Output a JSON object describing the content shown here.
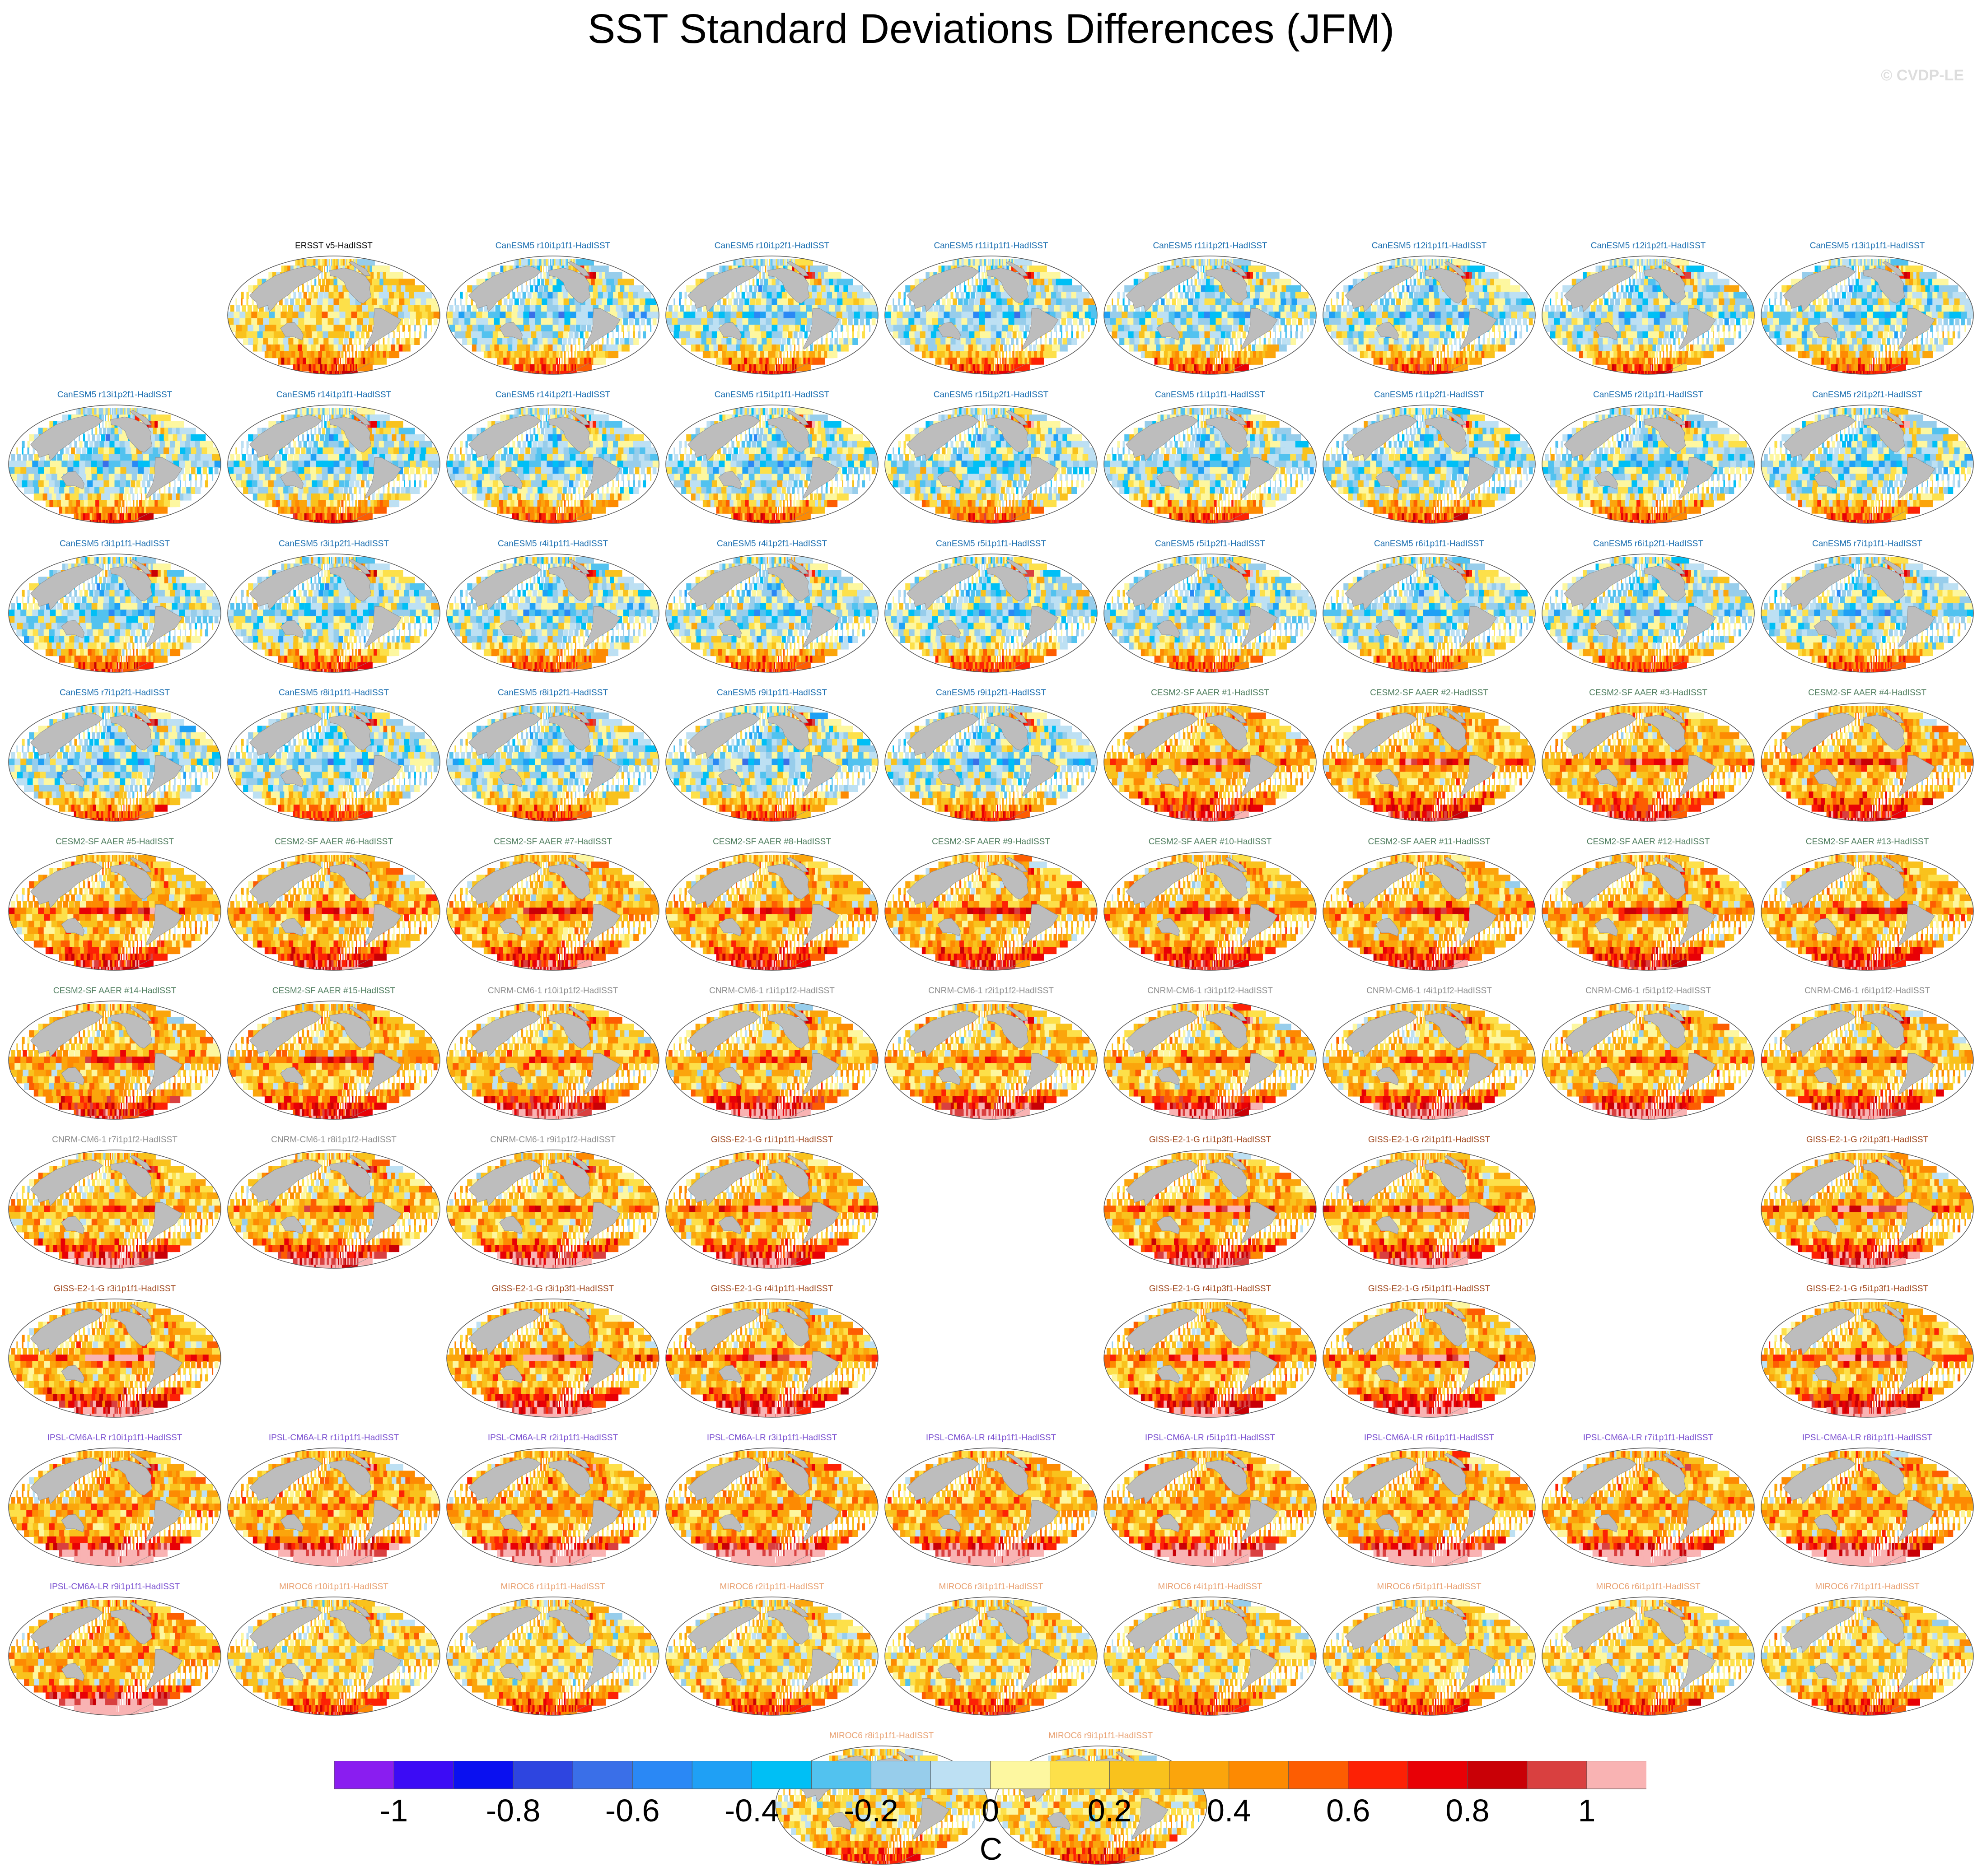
{
  "title": "SST Standard Deviations Differences (JFM)",
  "credit": "© CVDP-LE",
  "colorbar": {
    "units": "C",
    "tick_labels": [
      "-1",
      "-0.8",
      "-0.6",
      "-0.4",
      "-0.2",
      "0",
      "0.2",
      "0.4",
      "0.6",
      "0.8",
      "1"
    ],
    "colors": [
      "#8a1df0",
      "#3c0bf5",
      "#0a10f0",
      "#2e45e0",
      "#3a6fe8",
      "#2a88f5",
      "#1fa0f5",
      "#00bff5",
      "#52c2ef",
      "#97cdeb",
      "#bde0f3",
      "#fdf7a0",
      "#fde04a",
      "#f9c21d",
      "#fba50c",
      "#fd8a02",
      "#fd5d02",
      "#fd2105",
      "#e80006",
      "#c90006",
      "#d94040",
      "#f9b3b3"
    ]
  },
  "chart_data": {
    "type": "heatmap",
    "title": "SST Standard Deviations Differences (JFM)",
    "season": "JFM",
    "value_range": [
      -1.1,
      1.1
    ],
    "panels": [
      {
        "label": "ERSST v5-HadISST",
        "group": "obs",
        "grid": [
          1,
          1
        ]
      },
      {
        "label": "CanESM5 r10i1p1f1-HadISST",
        "group": "CanESM5",
        "grid": [
          1,
          2
        ]
      },
      {
        "label": "CanESM5 r10i1p2f1-HadISST",
        "group": "CanESM5",
        "grid": [
          1,
          3
        ]
      },
      {
        "label": "CanESM5 r11i1p1f1-HadISST",
        "group": "CanESM5",
        "grid": [
          1,
          4
        ]
      },
      {
        "label": "CanESM5 r11i1p2f1-HadISST",
        "group": "CanESM5",
        "grid": [
          1,
          5
        ]
      },
      {
        "label": "CanESM5 r12i1p1f1-HadISST",
        "group": "CanESM5",
        "grid": [
          1,
          6
        ]
      },
      {
        "label": "CanESM5 r12i1p2f1-HadISST",
        "group": "CanESM5",
        "grid": [
          1,
          7
        ]
      },
      {
        "label": "CanESM5 r13i1p1f1-HadISST",
        "group": "CanESM5",
        "grid": [
          1,
          8
        ]
      },
      {
        "label": "CanESM5 r13i1p2f1-HadISST",
        "group": "CanESM5",
        "grid": [
          2,
          0
        ]
      },
      {
        "label": "CanESM5 r14i1p1f1-HadISST",
        "group": "CanESM5",
        "grid": [
          2,
          1
        ]
      },
      {
        "label": "CanESM5 r14i1p2f1-HadISST",
        "group": "CanESM5",
        "grid": [
          2,
          2
        ]
      },
      {
        "label": "CanESM5 r15i1p1f1-HadISST",
        "group": "CanESM5",
        "grid": [
          2,
          3
        ]
      },
      {
        "label": "CanESM5 r15i1p2f1-HadISST",
        "group": "CanESM5",
        "grid": [
          2,
          4
        ]
      },
      {
        "label": "CanESM5 r1i1p1f1-HadISST",
        "group": "CanESM5",
        "grid": [
          2,
          5
        ]
      },
      {
        "label": "CanESM5 r1i1p2f1-HadISST",
        "group": "CanESM5",
        "grid": [
          2,
          6
        ]
      },
      {
        "label": "CanESM5 r2i1p1f1-HadISST",
        "group": "CanESM5",
        "grid": [
          2,
          7
        ]
      },
      {
        "label": "CanESM5 r2i1p2f1-HadISST",
        "group": "CanESM5",
        "grid": [
          2,
          8
        ]
      },
      {
        "label": "CanESM5 r3i1p1f1-HadISST",
        "group": "CanESM5",
        "grid": [
          3,
          0
        ]
      },
      {
        "label": "CanESM5 r3i1p2f1-HadISST",
        "group": "CanESM5",
        "grid": [
          3,
          1
        ]
      },
      {
        "label": "CanESM5 r4i1p1f1-HadISST",
        "group": "CanESM5",
        "grid": [
          3,
          2
        ]
      },
      {
        "label": "CanESM5 r4i1p2f1-HadISST",
        "group": "CanESM5",
        "grid": [
          3,
          3
        ]
      },
      {
        "label": "CanESM5 r5i1p1f1-HadISST",
        "group": "CanESM5",
        "grid": [
          3,
          4
        ]
      },
      {
        "label": "CanESM5 r5i1p2f1-HadISST",
        "group": "CanESM5",
        "grid": [
          3,
          5
        ]
      },
      {
        "label": "CanESM5 r6i1p1f1-HadISST",
        "group": "CanESM5",
        "grid": [
          3,
          6
        ]
      },
      {
        "label": "CanESM5 r6i1p2f1-HadISST",
        "group": "CanESM5",
        "grid": [
          3,
          7
        ]
      },
      {
        "label": "CanESM5 r7i1p1f1-HadISST",
        "group": "CanESM5",
        "grid": [
          3,
          8
        ]
      },
      {
        "label": "CanESM5 r7i1p2f1-HadISST",
        "group": "CanESM5",
        "grid": [
          4,
          0
        ]
      },
      {
        "label": "CanESM5 r8i1p1f1-HadISST",
        "group": "CanESM5",
        "grid": [
          4,
          1
        ]
      },
      {
        "label": "CanESM5 r8i1p2f1-HadISST",
        "group": "CanESM5",
        "grid": [
          4,
          2
        ]
      },
      {
        "label": "CanESM5 r9i1p1f1-HadISST",
        "group": "CanESM5",
        "grid": [
          4,
          3
        ]
      },
      {
        "label": "CanESM5 r9i1p2f1-HadISST",
        "group": "CanESM5",
        "grid": [
          4,
          4
        ]
      },
      {
        "label": "CESM2-SF AAER #1-HadISST",
        "group": "CESM2-SF AAER",
        "grid": [
          4,
          5
        ]
      },
      {
        "label": "CESM2-SF AAER #2-HadISST",
        "group": "CESM2-SF AAER",
        "grid": [
          4,
          6
        ]
      },
      {
        "label": "CESM2-SF AAER #3-HadISST",
        "group": "CESM2-SF AAER",
        "grid": [
          4,
          7
        ]
      },
      {
        "label": "CESM2-SF AAER #4-HadISST",
        "group": "CESM2-SF AAER",
        "grid": [
          4,
          8
        ]
      },
      {
        "label": "CESM2-SF AAER #5-HadISST",
        "group": "CESM2-SF AAER",
        "grid": [
          5,
          0
        ]
      },
      {
        "label": "CESM2-SF AAER #6-HadISST",
        "group": "CESM2-SF AAER",
        "grid": [
          5,
          1
        ]
      },
      {
        "label": "CESM2-SF AAER #7-HadISST",
        "group": "CESM2-SF AAER",
        "grid": [
          5,
          2
        ]
      },
      {
        "label": "CESM2-SF AAER #8-HadISST",
        "group": "CESM2-SF AAER",
        "grid": [
          5,
          3
        ]
      },
      {
        "label": "CESM2-SF AAER #9-HadISST",
        "group": "CESM2-SF AAER",
        "grid": [
          5,
          4
        ]
      },
      {
        "label": "CESM2-SF AAER #10-HadISST",
        "group": "CESM2-SF AAER",
        "grid": [
          5,
          5
        ]
      },
      {
        "label": "CESM2-SF AAER #11-HadISST",
        "group": "CESM2-SF AAER",
        "grid": [
          5,
          6
        ]
      },
      {
        "label": "CESM2-SF AAER #12-HadISST",
        "group": "CESM2-SF AAER",
        "grid": [
          5,
          7
        ]
      },
      {
        "label": "CESM2-SF AAER #13-HadISST",
        "group": "CESM2-SF AAER",
        "grid": [
          5,
          8
        ]
      },
      {
        "label": "CESM2-SF AAER #14-HadISST",
        "group": "CESM2-SF AAER",
        "grid": [
          6,
          0
        ]
      },
      {
        "label": "CESM2-SF AAER #15-HadISST",
        "group": "CESM2-SF AAER",
        "grid": [
          6,
          1
        ]
      },
      {
        "label": "CNRM-CM6-1 r10i1p1f2-HadISST",
        "group": "CNRM-CM6-1",
        "grid": [
          6,
          2
        ]
      },
      {
        "label": "CNRM-CM6-1 r1i1p1f2-HadISST",
        "group": "CNRM-CM6-1",
        "grid": [
          6,
          3
        ]
      },
      {
        "label": "CNRM-CM6-1 r2i1p1f2-HadISST",
        "group": "CNRM-CM6-1",
        "grid": [
          6,
          4
        ]
      },
      {
        "label": "CNRM-CM6-1 r3i1p1f2-HadISST",
        "group": "CNRM-CM6-1",
        "grid": [
          6,
          5
        ]
      },
      {
        "label": "CNRM-CM6-1 r4i1p1f2-HadISST",
        "group": "CNRM-CM6-1",
        "grid": [
          6,
          6
        ]
      },
      {
        "label": "CNRM-CM6-1 r5i1p1f2-HadISST",
        "group": "CNRM-CM6-1",
        "grid": [
          6,
          7
        ]
      },
      {
        "label": "CNRM-CM6-1 r6i1p1f2-HadISST",
        "group": "CNRM-CM6-1",
        "grid": [
          6,
          8
        ]
      },
      {
        "label": "CNRM-CM6-1 r7i1p1f2-HadISST",
        "group": "CNRM-CM6-1",
        "grid": [
          7,
          0
        ]
      },
      {
        "label": "CNRM-CM6-1 r8i1p1f2-HadISST",
        "group": "CNRM-CM6-1",
        "grid": [
          7,
          1
        ]
      },
      {
        "label": "CNRM-CM6-1 r9i1p1f2-HadISST",
        "group": "CNRM-CM6-1",
        "grid": [
          7,
          2
        ]
      },
      {
        "label": "GISS-E2-1-G r1i1p1f1-HadISST",
        "group": "GISS-E2-1-G",
        "grid": [
          7,
          3
        ]
      },
      {
        "label": "GISS-E2-1-G r1i1p3f1-HadISST",
        "group": "GISS-E2-1-G",
        "grid": [
          7,
          5
        ]
      },
      {
        "label": "GISS-E2-1-G r2i1p1f1-HadISST",
        "group": "GISS-E2-1-G",
        "grid": [
          7,
          6
        ]
      },
      {
        "label": "GISS-E2-1-G r2i1p3f1-HadISST",
        "group": "GISS-E2-1-G",
        "grid": [
          7,
          8
        ]
      },
      {
        "label": "GISS-E2-1-G r3i1p1f1-HadISST",
        "group": "GISS-E2-1-G",
        "grid": [
          8,
          0
        ]
      },
      {
        "label": "GISS-E2-1-G r3i1p3f1-HadISST",
        "group": "GISS-E2-1-G",
        "grid": [
          8,
          2
        ]
      },
      {
        "label": "GISS-E2-1-G r4i1p1f1-HadISST",
        "group": "GISS-E2-1-G",
        "grid": [
          8,
          3
        ]
      },
      {
        "label": "GISS-E2-1-G r4i1p3f1-HadISST",
        "group": "GISS-E2-1-G",
        "grid": [
          8,
          5
        ]
      },
      {
        "label": "GISS-E2-1-G r5i1p1f1-HadISST",
        "group": "GISS-E2-1-G",
        "grid": [
          8,
          6
        ]
      },
      {
        "label": "GISS-E2-1-G r5i1p3f1-HadISST",
        "group": "GISS-E2-1-G",
        "grid": [
          8,
          8
        ]
      },
      {
        "label": "IPSL-CM6A-LR r10i1p1f1-HadISST",
        "group": "IPSL-CM6A-LR",
        "grid": [
          9,
          0
        ]
      },
      {
        "label": "IPSL-CM6A-LR r1i1p1f1-HadISST",
        "group": "IPSL-CM6A-LR",
        "grid": [
          9,
          1
        ]
      },
      {
        "label": "IPSL-CM6A-LR r2i1p1f1-HadISST",
        "group": "IPSL-CM6A-LR",
        "grid": [
          9,
          2
        ]
      },
      {
        "label": "IPSL-CM6A-LR r3i1p1f1-HadISST",
        "group": "IPSL-CM6A-LR",
        "grid": [
          9,
          3
        ]
      },
      {
        "label": "IPSL-CM6A-LR r4i1p1f1-HadISST",
        "group": "IPSL-CM6A-LR",
        "grid": [
          9,
          4
        ]
      },
      {
        "label": "IPSL-CM6A-LR r5i1p1f1-HadISST",
        "group": "IPSL-CM6A-LR",
        "grid": [
          9,
          5
        ]
      },
      {
        "label": "IPSL-CM6A-LR r6i1p1f1-HadISST",
        "group": "IPSL-CM6A-LR",
        "grid": [
          9,
          6
        ]
      },
      {
        "label": "IPSL-CM6A-LR r7i1p1f1-HadISST",
        "group": "IPSL-CM6A-LR",
        "grid": [
          9,
          7
        ]
      },
      {
        "label": "IPSL-CM6A-LR r8i1p1f1-HadISST",
        "group": "IPSL-CM6A-LR",
        "grid": [
          9,
          8
        ]
      },
      {
        "label": "IPSL-CM6A-LR r9i1p1f1-HadISST",
        "group": "IPSL-CM6A-LR",
        "grid": [
          10,
          0
        ]
      },
      {
        "label": "MIROC6 r10i1p1f1-HadISST",
        "group": "MIROC6",
        "grid": [
          10,
          1
        ]
      },
      {
        "label": "MIROC6 r1i1p1f1-HadISST",
        "group": "MIROC6",
        "grid": [
          10,
          2
        ]
      },
      {
        "label": "MIROC6 r2i1p1f1-HadISST",
        "group": "MIROC6",
        "grid": [
          10,
          3
        ]
      },
      {
        "label": "MIROC6 r3i1p1f1-HadISST",
        "group": "MIROC6",
        "grid": [
          10,
          4
        ]
      },
      {
        "label": "MIROC6 r4i1p1f1-HadISST",
        "group": "MIROC6",
        "grid": [
          10,
          5
        ]
      },
      {
        "label": "MIROC6 r5i1p1f1-HadISST",
        "group": "MIROC6",
        "grid": [
          10,
          6
        ]
      },
      {
        "label": "MIROC6 r6i1p1f1-HadISST",
        "group": "MIROC6",
        "grid": [
          10,
          7
        ]
      },
      {
        "label": "MIROC6 r7i1p1f1-HadISST",
        "group": "MIROC6",
        "grid": [
          10,
          8
        ]
      },
      {
        "label": "MIROC6 r8i1p1f1-HadISST",
        "group": "MIROC6",
        "grid": [
          11,
          3.5
        ]
      },
      {
        "label": "MIROC6 r9i1p1f1-HadISST",
        "group": "MIROC6",
        "grid": [
          11,
          4.5
        ]
      }
    ],
    "group_colors": {
      "obs": "#000000",
      "CanESM5": "#1a6eb0",
      "CESM2-SF AAER": "#4f7d5e",
      "CNRM-CM6-1": "#8c8c8c",
      "GISS-E2-1-G": "#a0481e",
      "IPSL-CM6A-LR": "#7a4fd0",
      "MIROC6": "#e8a070"
    },
    "group_patterns": {
      "obs": {
        "base": 0.12,
        "eq": 0.05,
        "south": 0.35,
        "north": 0.05,
        "atl": 0.1
      },
      "CanESM5": {
        "base": -0.05,
        "eq": -0.25,
        "south": 0.45,
        "north": -0.2,
        "atl": 0.9
      },
      "CESM2-SF AAER": {
        "base": 0.25,
        "eq": 0.55,
        "south": 0.4,
        "north": -0.1,
        "atl": 0.2
      },
      "CNRM-CM6-1": {
        "base": 0.22,
        "eq": 0.35,
        "south": 0.6,
        "north": -0.15,
        "atl": 0.6
      },
      "GISS-E2-1-G": {
        "base": 0.25,
        "eq": 0.85,
        "south": 0.55,
        "north": -0.05,
        "atl": 0.2
      },
      "IPSL-CM6A-LR": {
        "base": 0.28,
        "eq": 0.15,
        "south": 0.8,
        "north": 0.1,
        "atl": 0.5
      },
      "MIROC6": {
        "base": 0.15,
        "eq": 0.05,
        "south": 0.35,
        "north": 0.05,
        "atl": 0.3
      }
    }
  }
}
